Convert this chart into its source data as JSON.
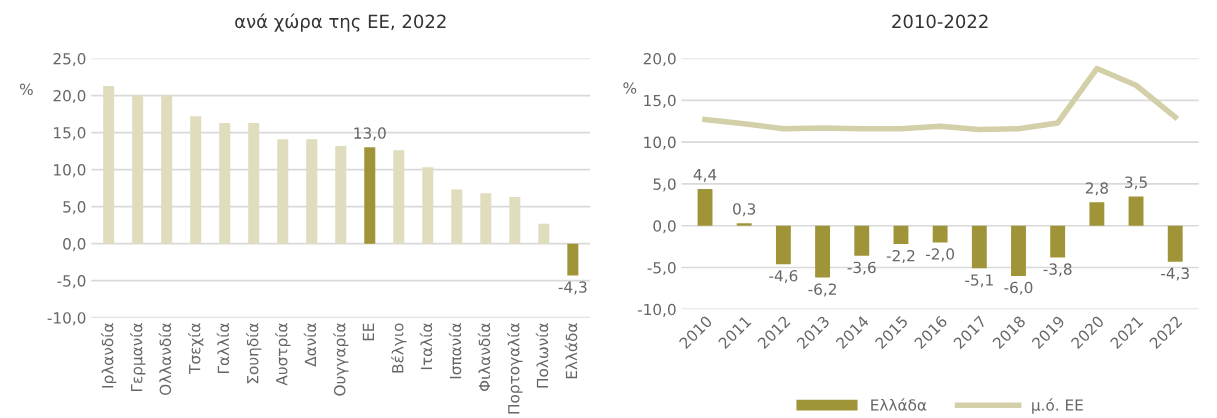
{
  "chart_data": [
    {
      "type": "bar",
      "title": "ανά χώρα της ΕΕ, 2022",
      "ylabel": "%",
      "categories": [
        "Ιρλανδία",
        "Γερμανία",
        "Ολλανδία",
        "Τσεχία",
        "Γαλλία",
        "Σουηδία",
        "Αυστρία",
        "Δανία",
        "Ουγγαρία",
        "ΕΕ",
        "Βέλγιο",
        "Ιταλία",
        "Ισπανία",
        "Φιλανδία",
        "Πορτογαλία",
        "Πολωνία",
        "Ελλάδα"
      ],
      "values": [
        21.3,
        20.0,
        20.0,
        17.2,
        16.3,
        16.3,
        14.1,
        14.1,
        13.2,
        13.0,
        12.6,
        10.3,
        7.3,
        6.8,
        6.3,
        2.7,
        -4.3
      ],
      "colors": [
        "#e0dcbe",
        "#e0dcbe",
        "#e0dcbe",
        "#e0dcbe",
        "#e0dcbe",
        "#e0dcbe",
        "#e0dcbe",
        "#e0dcbe",
        "#e0dcbe",
        "#a09438",
        "#e0dcbe",
        "#e0dcbe",
        "#e0dcbe",
        "#e0dcbe",
        "#e0dcbe",
        "#e0dcbe",
        "#a09438"
      ],
      "value_labels": [
        null,
        null,
        null,
        null,
        null,
        null,
        null,
        null,
        null,
        "13,0",
        null,
        null,
        null,
        null,
        null,
        null,
        "-4,3"
      ],
      "ylim": [
        -10,
        25
      ],
      "yticks": [
        {
          "value": -10,
          "label": "-10,0"
        },
        {
          "value": -5,
          "label": "-5,0"
        },
        {
          "value": 0,
          "label": "0,0"
        },
        {
          "value": 5,
          "label": "5,0"
        },
        {
          "value": 10,
          "label": "10,0"
        },
        {
          "value": 15,
          "label": "15,0"
        },
        {
          "value": 20,
          "label": "20,0"
        },
        {
          "value": 25,
          "label": "25,0"
        }
      ],
      "grid": "y"
    },
    {
      "type": "bar",
      "title": "2010-2022",
      "ylabel": "%",
      "categories": [
        "2010",
        "2011",
        "2012",
        "2013",
        "2014",
        "2015",
        "2016",
        "2017",
        "2018",
        "2019",
        "2020",
        "2021",
        "2022"
      ],
      "series": [
        {
          "name": "Ελλάδα",
          "type": "bar",
          "color": "#a09438",
          "values": [
            4.4,
            0.3,
            -4.6,
            -6.2,
            -3.6,
            -2.2,
            -2.0,
            -5.1,
            -6.0,
            -3.8,
            2.8,
            3.5,
            -4.3
          ],
          "value_labels": [
            "4,4",
            "0,3",
            "-4,6",
            "-6,2",
            "-3,6",
            "-2,2",
            "-2,0",
            "-5,1",
            "-6,0",
            "-3,8",
            "2,8",
            "3,5",
            "-4,3"
          ]
        },
        {
          "name": "μ.ό. ΕΕ",
          "type": "line",
          "color": "#d3cfa8",
          "values": [
            12.7,
            12.2,
            11.6,
            11.7,
            11.6,
            11.6,
            11.9,
            11.5,
            11.6,
            12.3,
            18.8,
            16.8,
            13.0
          ]
        }
      ],
      "ylim": [
        -10,
        20
      ],
      "yticks": [
        {
          "value": -10,
          "label": "-10,0"
        },
        {
          "value": -5,
          "label": "-5,0"
        },
        {
          "value": 0,
          "label": "0,0"
        },
        {
          "value": 5,
          "label": "5,0"
        },
        {
          "value": 10,
          "label": "10,0"
        },
        {
          "value": 15,
          "label": "15,0"
        },
        {
          "value": 20,
          "label": "20,0"
        }
      ],
      "grid": "y",
      "legend": "bottom",
      "line_style": "solid",
      "marker": "none"
    }
  ]
}
